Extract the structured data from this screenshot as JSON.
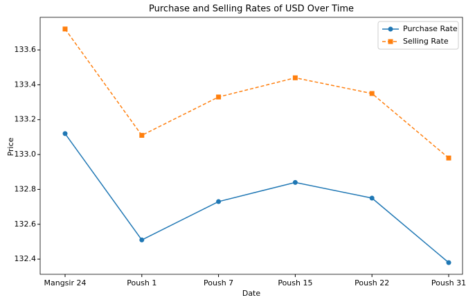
{
  "chart_data": {
    "type": "line",
    "title": "Purchase and Selling Rates of USD Over Time",
    "x_label": "Date",
    "y_label": "Price",
    "categories": [
      "Mangsir 24",
      "Poush 1",
      "Poush 7",
      "Poush 15",
      "Poush 22",
      "Poush 31"
    ],
    "series": [
      {
        "name": "Purchase Rate",
        "color": "#1f77b4",
        "marker": "circle",
        "linestyle": "solid",
        "values": [
          133.12,
          132.51,
          132.73,
          132.84,
          132.75,
          132.38
        ]
      },
      {
        "name": "Selling Rate",
        "color": "#ff7f0e",
        "marker": "square",
        "linestyle": "dashed",
        "values": [
          133.72,
          133.11,
          133.33,
          133.44,
          133.35,
          132.98
        ]
      }
    ],
    "ylim": [
      132.313,
      133.787
    ],
    "yticks": [
      132.4,
      132.6,
      132.8,
      133.0,
      133.2,
      133.4,
      133.6
    ],
    "yticklabels": [
      "132.4",
      "132.6",
      "132.8",
      "133.0",
      "133.2",
      "133.4",
      "133.6"
    ],
    "legend": "upper right",
    "grid": false
  }
}
